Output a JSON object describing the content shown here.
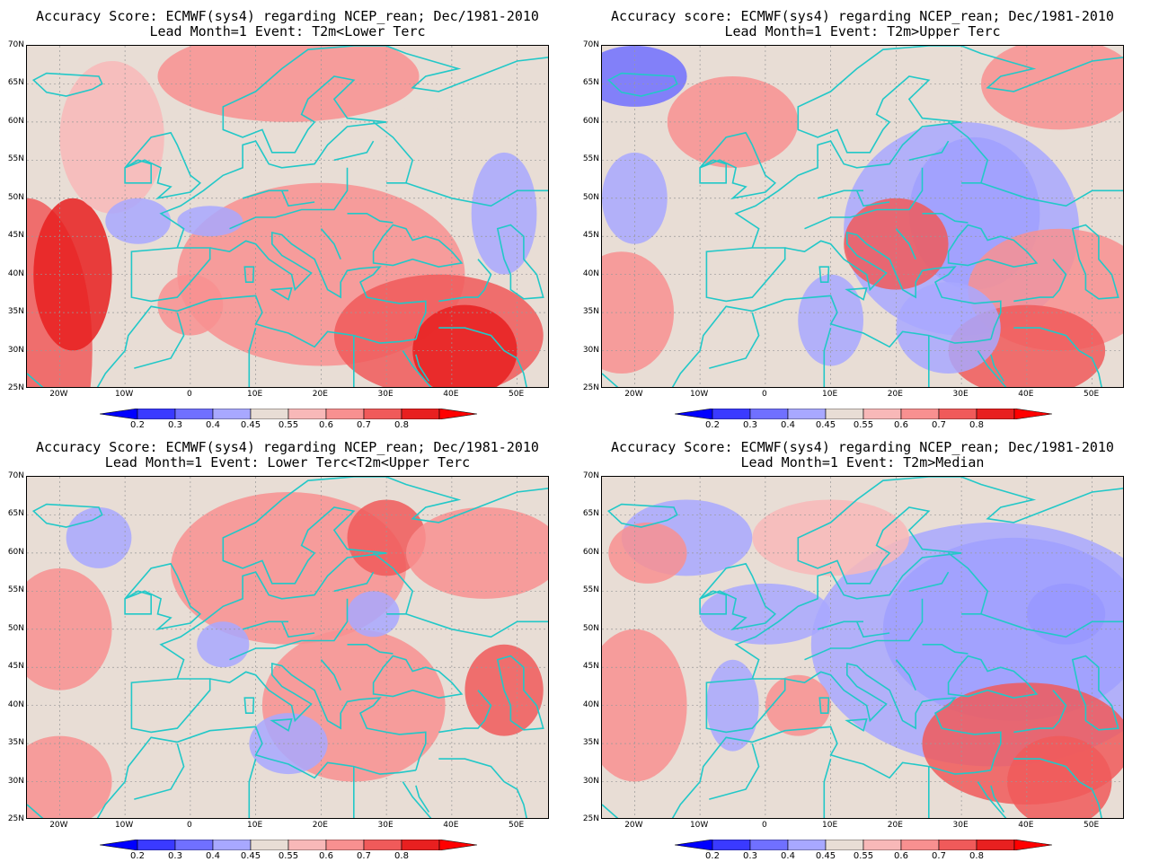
{
  "panels": [
    {
      "title_line1": "Accuracy Score: ECMWF(sys4) regarding NCEP_rean; Dec/1981-2010",
      "title_line2": "Lead Month=1 Event: T2m<Lower Terc"
    },
    {
      "title_line1": "Accuracy score: ECMWF(sys4) regarding NCEP_rean; Dec/1981-2010",
      "title_line2": "Lead Month=1 Event: T2m>Upper Terc"
    },
    {
      "title_line1": "Accuracy Score: ECMWF(sys4) regarding NCEP_rean; Dec/1981-2010",
      "title_line2": "Lead Month=1 Event: Lower Terc<T2m<Upper Terc"
    },
    {
      "title_line1": "Accuracy Score: ECMWF(sys4) regarding NCEP_rean; Dec/1981-2010",
      "title_line2": "Lead Month=1 Event: T2m>Median"
    }
  ],
  "lat_labels": [
    "70N",
    "65N",
    "60N",
    "55N",
    "50N",
    "45N",
    "40N",
    "35N",
    "30N",
    "25N"
  ],
  "lon_labels": [
    "20W",
    "10W",
    "0",
    "10E",
    "20E",
    "30E",
    "40E",
    "50E"
  ],
  "colorbar": {
    "values": [
      "0.2",
      "0.3",
      "0.4",
      "0.45",
      "0.55",
      "0.6",
      "0.7",
      "0.8"
    ],
    "colors": [
      "#0000ff",
      "#3a3aff",
      "#7070ff",
      "#a8a8ff",
      "#e8ddd5",
      "#f8b8b8",
      "#f89090",
      "#f05a5a",
      "#e82020",
      "#ff0000"
    ]
  },
  "map_style": {
    "coast_color": "#22c8c8",
    "grid_color": "#999999",
    "base_color": "#e8ddd5"
  }
}
